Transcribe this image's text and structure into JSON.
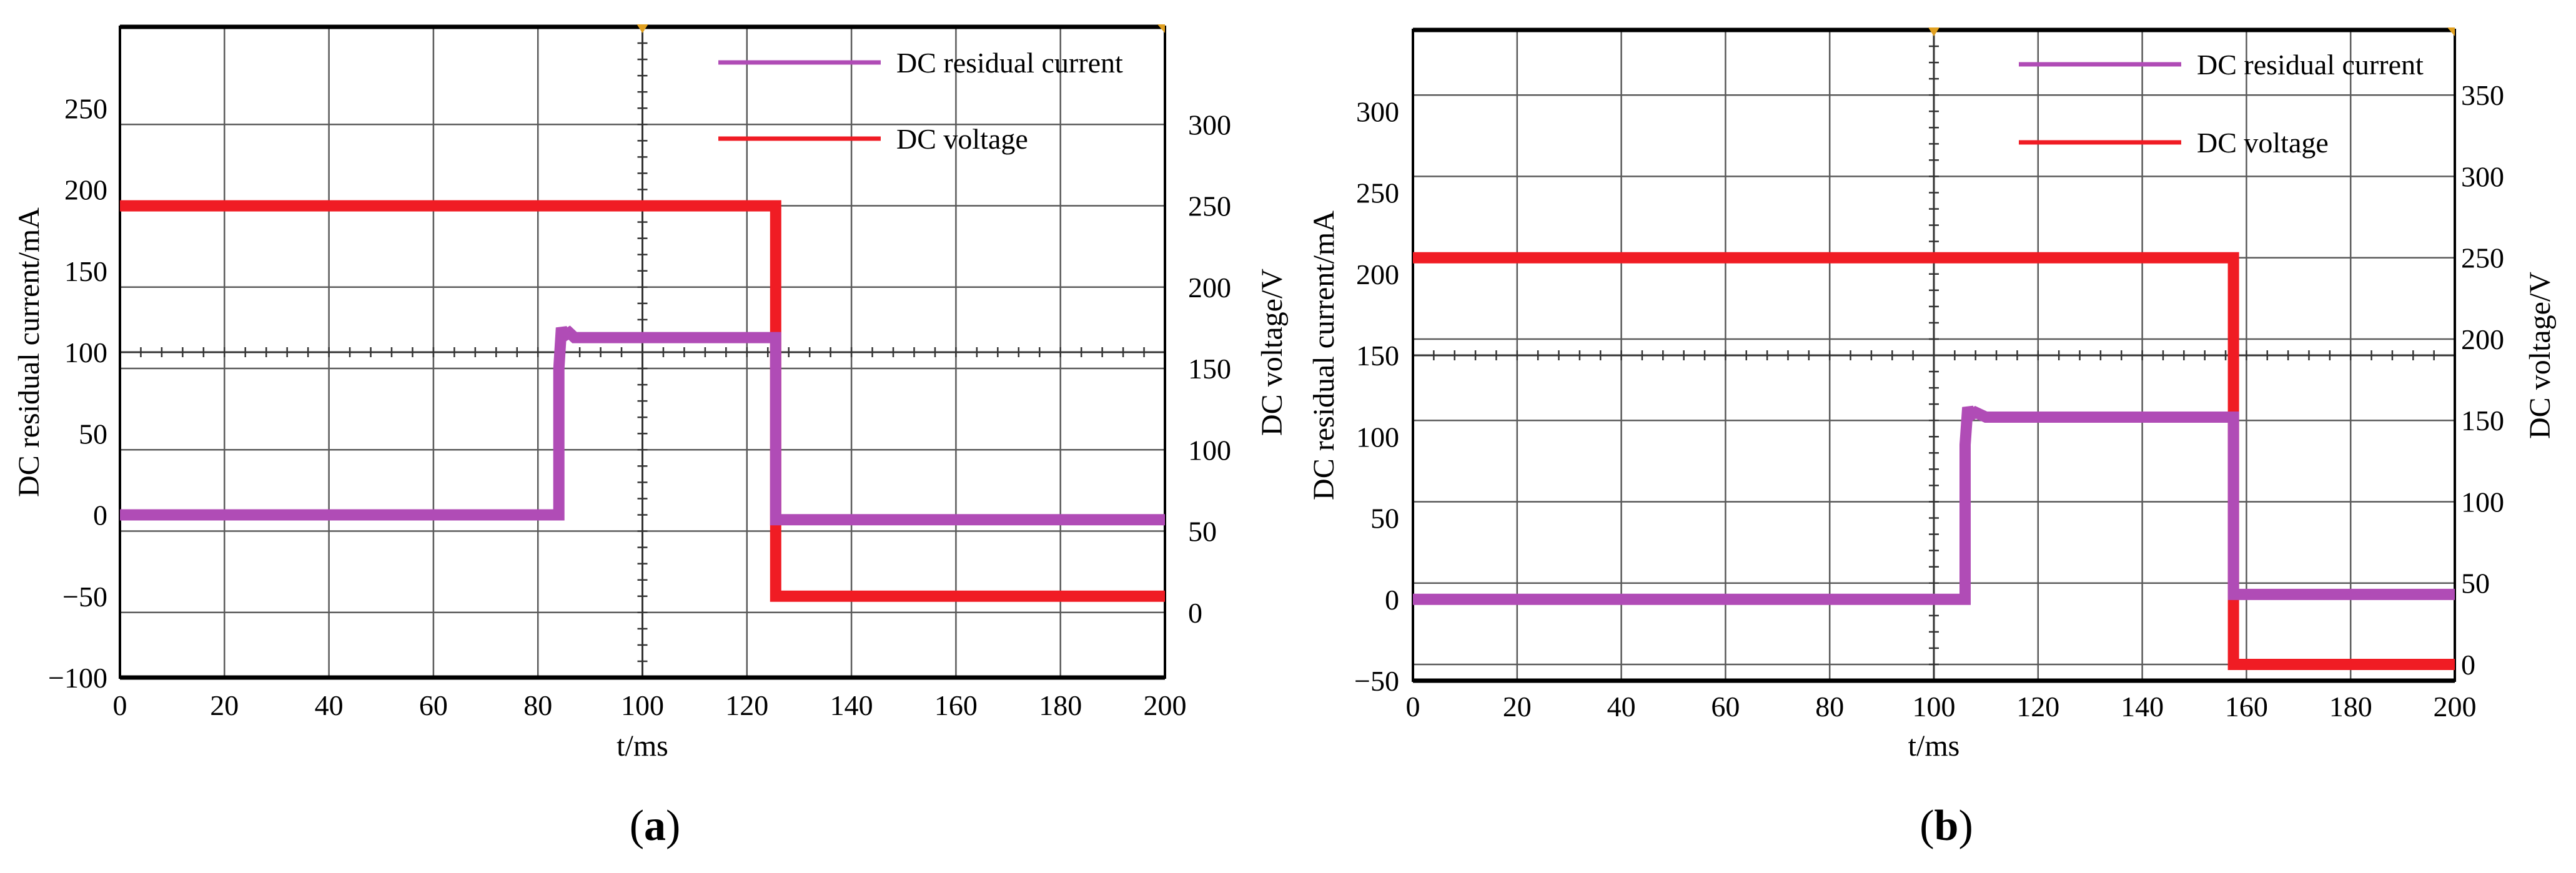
{
  "colors": {
    "current": "#b04cb6",
    "voltage": "#f01c24",
    "grid": "#5a5a5a",
    "frame": "#000000",
    "marker": "#e0a020"
  },
  "chart_data": [
    {
      "panel_label": "a",
      "type": "line",
      "xlabel": "t/ms",
      "ylabel": "DC residual current/mA",
      "y2label": "DC voltage/V",
      "xlim": [
        0,
        200
      ],
      "ylim": [
        -100,
        300
      ],
      "y2lim": [
        -40,
        360
      ],
      "xticks": [
        0,
        20,
        40,
        60,
        80,
        100,
        120,
        140,
        160,
        180,
        200
      ],
      "yticks": [
        -100,
        -50,
        0,
        50,
        100,
        150,
        200,
        250
      ],
      "y2ticks": [
        0,
        50,
        100,
        150,
        200,
        250,
        300
      ],
      "xtick_labels": [
        "0",
        "20",
        "40",
        "60",
        "80",
        "100",
        "120",
        "140",
        "160",
        "180",
        "200"
      ],
      "ytick_labels": [
        "−100",
        "−50",
        "0",
        "50",
        "100",
        "150",
        "200",
        "250"
      ],
      "y2tick_labels": [
        "0",
        "50",
        "100",
        "150",
        "200",
        "250",
        "300"
      ],
      "grid": true,
      "legend": "top-right",
      "legend_labels": [
        "DC residual current",
        "DC voltage"
      ],
      "series": [
        {
          "name": "DC residual current",
          "axis": "left",
          "x": [
            0,
            84,
            84,
            84.5,
            85,
            86,
            87,
            125.5,
            125.5,
            200
          ],
          "y": [
            0,
            0,
            90,
            115,
            110,
            112,
            109,
            109,
            -3,
            -3
          ]
        },
        {
          "name": "DC voltage",
          "axis": "right",
          "x": [
            0,
            125.5,
            125.5,
            200
          ],
          "y": [
            250,
            250,
            10,
            10
          ]
        }
      ]
    },
    {
      "panel_label": "b",
      "type": "line",
      "xlabel": "t/ms",
      "ylabel": "DC residual current/mA",
      "y2label": "DC voltage/V",
      "xlim": [
        0,
        200
      ],
      "ylim": [
        -50,
        350
      ],
      "y2lim": [
        -10,
        390
      ],
      "xticks": [
        0,
        20,
        40,
        60,
        80,
        100,
        120,
        140,
        160,
        180,
        200
      ],
      "yticks": [
        -50,
        0,
        50,
        100,
        150,
        200,
        250,
        300
      ],
      "y2ticks": [
        0,
        50,
        100,
        150,
        200,
        250,
        300,
        350
      ],
      "xtick_labels": [
        "0",
        "20",
        "40",
        "60",
        "80",
        "100",
        "120",
        "140",
        "160",
        "180",
        "200"
      ],
      "ytick_labels": [
        "−50",
        "0",
        "50",
        "100",
        "150",
        "200",
        "250",
        "300"
      ],
      "y2tick_labels": [
        "0",
        "50",
        "100",
        "150",
        "200",
        "250",
        "300",
        "350"
      ],
      "grid": true,
      "legend": "top-right",
      "legend_labels": [
        "DC residual current",
        "DC voltage"
      ],
      "series": [
        {
          "name": "DC residual current",
          "axis": "left",
          "x": [
            0,
            106,
            106,
            106.5,
            107,
            108,
            110,
            157.5,
            157.5,
            200
          ],
          "y": [
            0,
            0,
            95,
            118,
            113,
            115,
            112,
            112,
            3,
            3
          ]
        },
        {
          "name": "DC voltage",
          "axis": "right",
          "x": [
            0,
            157.5,
            157.5,
            200
          ],
          "y": [
            250,
            250,
            0,
            0
          ]
        }
      ]
    }
  ]
}
